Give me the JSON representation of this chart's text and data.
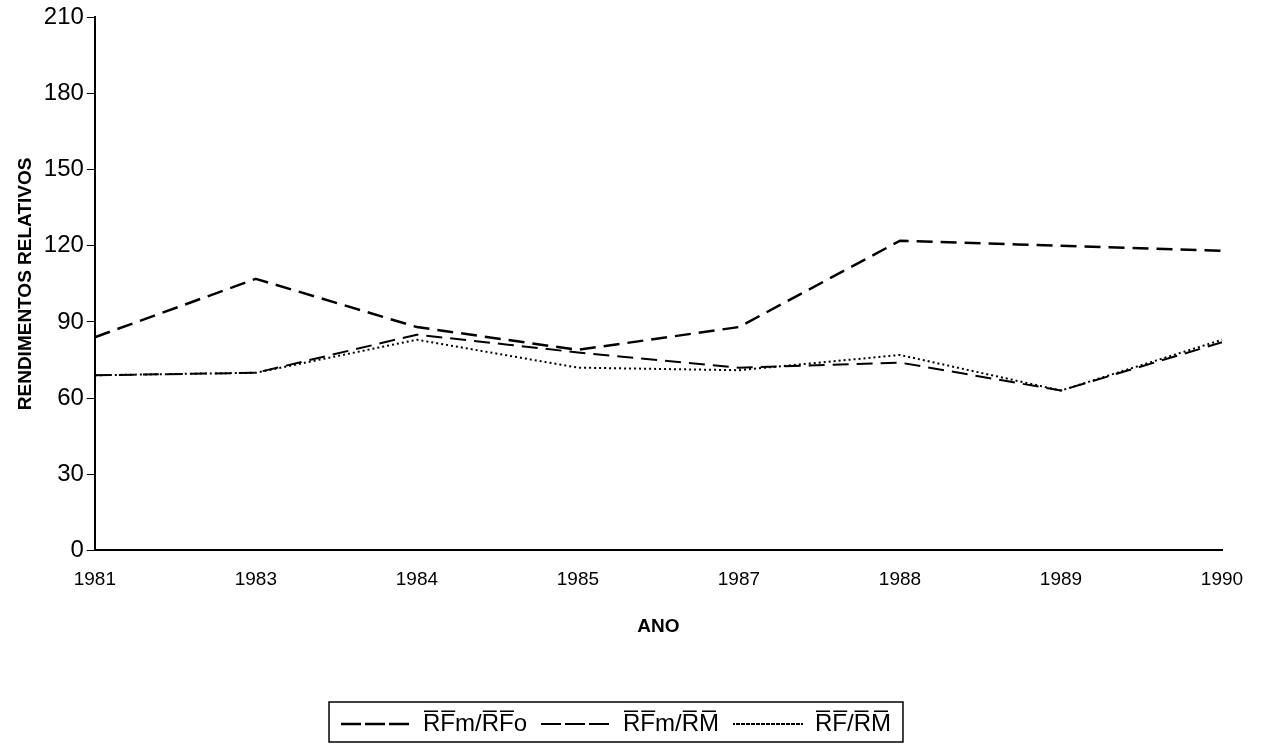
{
  "chart_data": {
    "type": "line",
    "xlabel": "ANO",
    "ylabel": "RENDIMENTOS RELATIVOS",
    "categories": [
      "1981",
      "1983",
      "1984",
      "1985",
      "1987",
      "1988",
      "1989",
      "1990"
    ],
    "series": [
      {
        "name": "R̅F̅m/R̅F̅o",
        "color": "#000000",
        "line_style": "dashed",
        "values": [
          84,
          107,
          88,
          79,
          88,
          122,
          120,
          118
        ]
      },
      {
        "name": "R̅F̅m/R̅M̅",
        "color": "#000000",
        "line_style": "dashed",
        "values": [
          69,
          70,
          85,
          78,
          72,
          74,
          63,
          82
        ]
      },
      {
        "name": "R̅F̅/R̅M̅",
        "color": "#000000",
        "line_style": "dotted",
        "values": [
          69,
          70,
          83,
          72,
          71,
          77,
          63,
          83
        ]
      }
    ],
    "ylim": [
      0,
      210
    ],
    "yticks": [
      0,
      30,
      60,
      90,
      120,
      150,
      180,
      210
    ],
    "grid": false,
    "legend": "bottom",
    "marker": "none"
  }
}
